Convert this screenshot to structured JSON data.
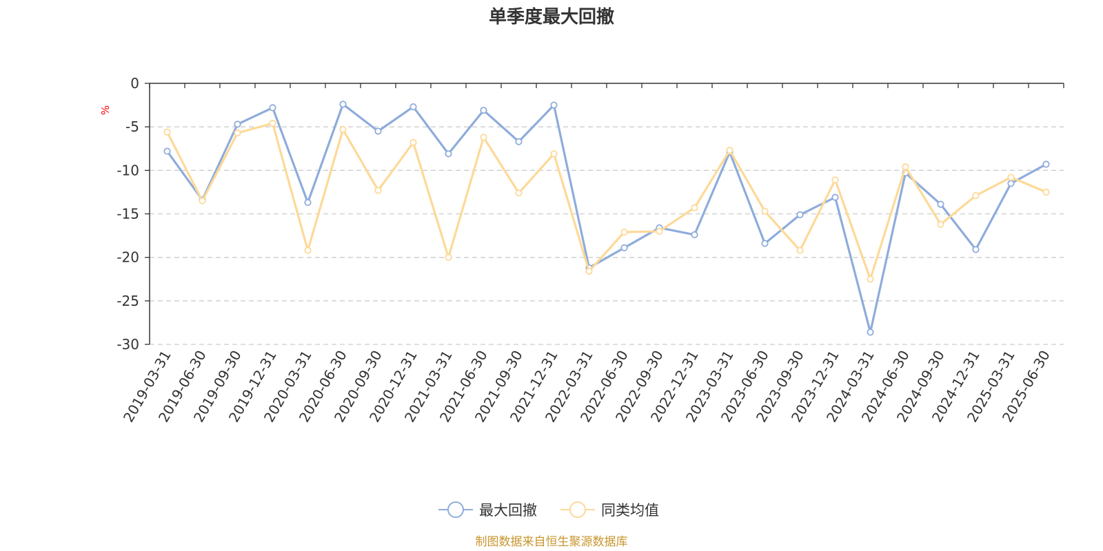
{
  "chart_data": {
    "type": "line",
    "title": "单季度最大回撤",
    "ylabel": "%",
    "ylim": [
      -30,
      0
    ],
    "yticks": [
      0,
      -5,
      -10,
      -15,
      -20,
      -25,
      -30
    ],
    "grid": true,
    "legend_position": "bottom-center",
    "categories": [
      "2019-03-31",
      "2019-06-30",
      "2019-09-30",
      "2019-12-31",
      "2020-03-31",
      "2020-06-30",
      "2020-09-30",
      "2020-12-31",
      "2021-03-31",
      "2021-06-30",
      "2021-09-30",
      "2021-12-31",
      "2022-03-31",
      "2022-06-30",
      "2022-09-30",
      "2022-12-31",
      "2023-03-31",
      "2023-06-30",
      "2023-09-30",
      "2023-12-31",
      "2024-03-31",
      "2024-06-30",
      "2024-09-30",
      "2024-12-31",
      "2025-03-31",
      "2025-06-30"
    ],
    "series": [
      {
        "name": "最大回撤",
        "color": "#8eacdb",
        "values": [
          -7.8,
          -13.4,
          -4.7,
          -2.8,
          -13.7,
          -2.4,
          -5.5,
          -2.7,
          -8.1,
          -3.1,
          -6.7,
          -2.5,
          -21.2,
          -18.9,
          -16.6,
          -17.4,
          -7.9,
          -18.4,
          -15.1,
          -13.1,
          -28.6,
          -10.3,
          -13.9,
          -19.1,
          -11.5,
          -9.3
        ]
      },
      {
        "name": "同类均值",
        "color": "#fdd998",
        "values": [
          -5.6,
          -13.5,
          -5.7,
          -4.6,
          -19.2,
          -5.3,
          -12.3,
          -6.8,
          -20.0,
          -6.2,
          -12.6,
          -8.1,
          -21.6,
          -17.1,
          -17.0,
          -14.3,
          -7.7,
          -14.7,
          -19.2,
          -11.1,
          -22.5,
          -9.6,
          -16.2,
          -12.9,
          -10.8,
          -12.5
        ]
      }
    ]
  },
  "source_text": "制图数据来自恒生聚源数据库",
  "colors": {
    "title": "#333333",
    "axis": "#333333",
    "grid": "#cccccc",
    "unit": "#ff0000",
    "source": "#c8962e"
  }
}
